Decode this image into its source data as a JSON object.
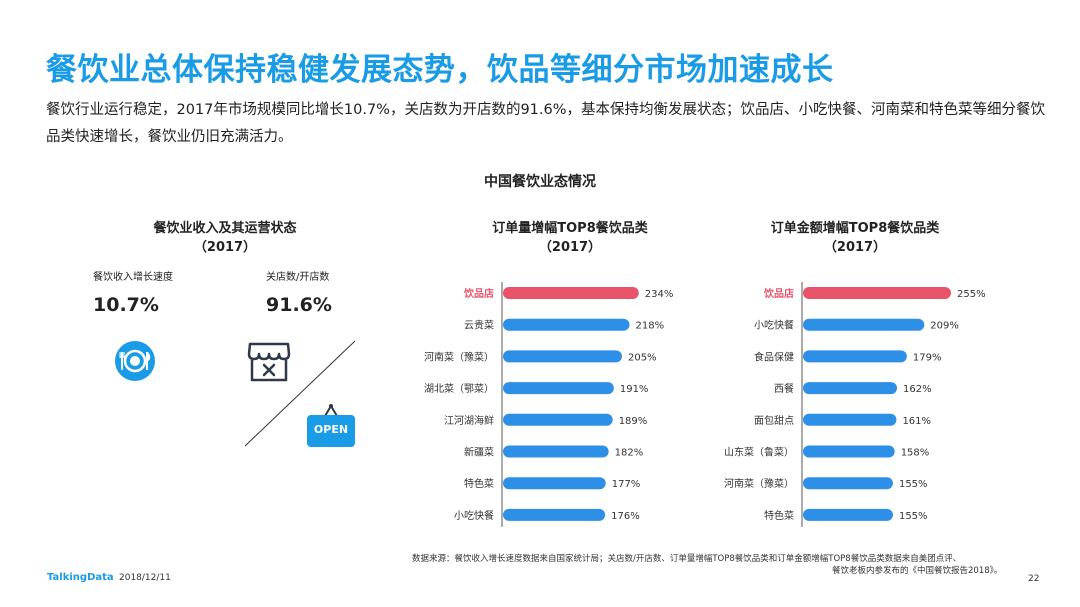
{
  "header": {
    "title": "餐饮业总体保持稳健发展态势，饮品等细分市场加速成长",
    "subtitle": "餐饮行业运行稳定，2017年市场规模同比增长10.7%，关店数为开店数的91.6%，基本保持均衡发展状态；饮品店、小吃快餐、河南菜和特色菜等细分餐饮品类快速增长，餐饮业仍旧充满活力。"
  },
  "main_title": "中国餐饮业态情况",
  "left_section": {
    "title": "餐饮业收入及其运营状态",
    "year": "（2017）",
    "kpis": [
      {
        "label": "餐饮收入增长速度",
        "value": "10.7%"
      },
      {
        "label": "关店数/开店数",
        "value": "91.6%"
      }
    ],
    "open_sign_text": "OPEN",
    "icons": [
      "plate-cutlery-icon",
      "closed-store-icon",
      "open-sign-icon"
    ]
  },
  "colors": {
    "accent": "#1a9be6",
    "bar_blue": "#2e8fe6",
    "bar_highlight": "#e8536a"
  },
  "chart_data": [
    {
      "type": "bar",
      "orientation": "horizontal",
      "title": "订单量增幅TOP8餐饮品类",
      "subtitle": "（2017）",
      "categories": [
        "饮品店",
        "云贵菜",
        "河南菜（豫菜）",
        "湖北菜（鄂菜）",
        "江河湖海鲜",
        "新疆菜",
        "特色菜",
        "小吃快餐"
      ],
      "values": [
        234,
        218,
        205,
        191,
        189,
        182,
        177,
        176
      ],
      "value_labels": [
        "234%",
        "218%",
        "205%",
        "191%",
        "189%",
        "182%",
        "177%",
        "176%"
      ],
      "highlight_index": 0,
      "xlim": [
        0,
        255
      ]
    },
    {
      "type": "bar",
      "orientation": "horizontal",
      "title": "订单金额增幅TOP8餐饮品类",
      "subtitle": "（2017）",
      "categories": [
        "饮品店",
        "小吃快餐",
        "食品保健",
        "西餐",
        "面包甜点",
        "山东菜（鲁菜）",
        "河南菜（豫菜）",
        "特色菜"
      ],
      "values": [
        255,
        209,
        179,
        162,
        161,
        158,
        155,
        155
      ],
      "value_labels": [
        "255%",
        "209%",
        "179%",
        "162%",
        "161%",
        "158%",
        "155%",
        "155%"
      ],
      "highlight_index": 0,
      "xlim": [
        0,
        255
      ]
    }
  ],
  "footer": {
    "logo": "TalkingData",
    "date": "2018/12/11",
    "source_line1": "数据来源：餐饮收入增长速度数据来自国家统计局；关店数/开店数、订单量增幅TOP8餐饮品类和订单金额增幅TOP8餐饮品类数据来自美团点评、",
    "source_line2": "餐饮老板内参发布的《中国餐饮报告2018》。",
    "page": "22"
  }
}
